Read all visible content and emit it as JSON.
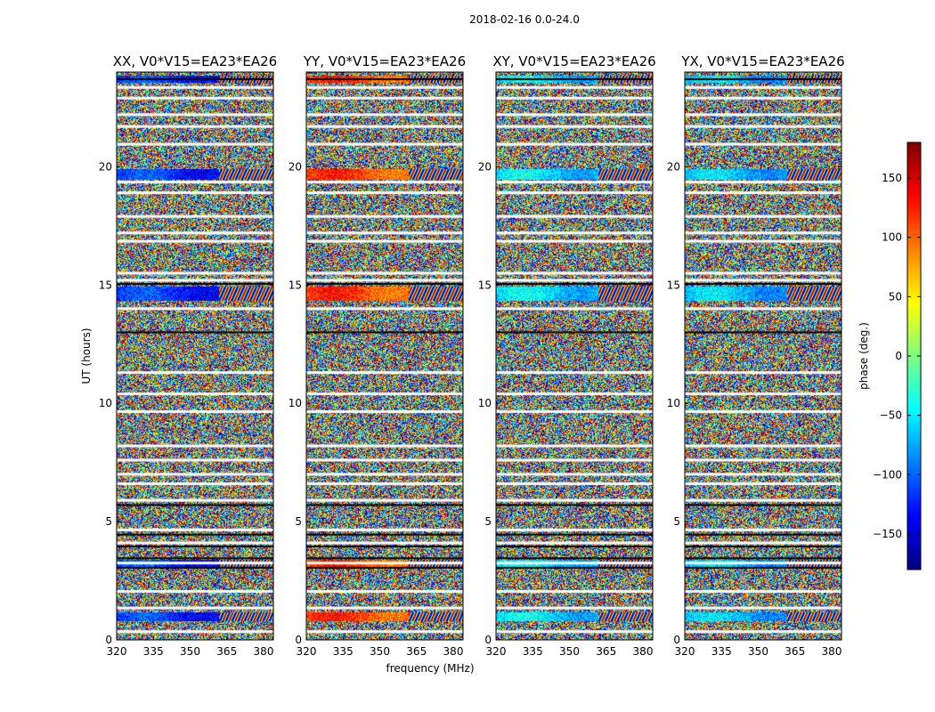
{
  "chart_data": {
    "type": "heatmap",
    "suptitle": "2018-02-16 0.0-24.0",
    "xlabel": "frequency (MHz)",
    "ylabel": "UT (hours)",
    "xlim": [
      320,
      384
    ],
    "ylim": [
      0,
      24
    ],
    "xticks": [
      {
        "value": 320,
        "label": "320"
      },
      {
        "value": 335,
        "label": "335"
      },
      {
        "value": 350,
        "label": "350"
      },
      {
        "value": 365,
        "label": "365"
      },
      {
        "value": 380,
        "label": "380"
      }
    ],
    "yticks": [
      {
        "value": 0,
        "label": "0"
      },
      {
        "value": 5,
        "label": "5"
      },
      {
        "value": 10,
        "label": "10"
      },
      {
        "value": 15,
        "label": "15"
      },
      {
        "value": 20,
        "label": "20"
      }
    ],
    "panels": [
      {
        "title": "XX, V0*V15=EA23*EA26",
        "bias": -120
      },
      {
        "title": "YY, V0*V15=EA23*EA26",
        "bias": 110
      },
      {
        "title": "XY, V0*V15=EA23*EA26",
        "bias": -60
      },
      {
        "title": "YX, V0*V15=EA23*EA26",
        "bias": -70
      }
    ],
    "colorbar": {
      "label": "phase (deg.)",
      "range": [
        -180,
        180
      ],
      "ticks": [
        {
          "value": 150,
          "label": "150"
        },
        {
          "value": 100,
          "label": "100"
        },
        {
          "value": 50,
          "label": "50"
        },
        {
          "value": 0,
          "label": "0"
        },
        {
          "value": -50,
          "label": "−50"
        },
        {
          "value": -100,
          "label": "−100"
        },
        {
          "value": -150,
          "label": "−150"
        }
      ],
      "colormap": [
        "#00007f",
        "#0000ff",
        "#007fff",
        "#00ffff",
        "#7fff7f",
        "#ffff00",
        "#ff7f00",
        "#ff0000",
        "#7f0000"
      ]
    },
    "gap_rows_ut": [
      23.35,
      22.9,
      22.2,
      21.7,
      20.95,
      19.35,
      18.9,
      17.9,
      17.2,
      16.85,
      15.5,
      15.2,
      14.0,
      11.3,
      10.4,
      9.65,
      8.2,
      7.6,
      7.0,
      6.6,
      5.9,
      4.65,
      4.1,
      3.25,
      2.05,
      1.35,
      0.35
    ],
    "flag_rows_ut": [
      23.7,
      15.05,
      13.0,
      5.7,
      4.45,
      3.95,
      3.45,
      3.05
    ],
    "coherent_bands_ut": [
      [
        23.55,
        23.85
      ],
      [
        19.45,
        19.9
      ],
      [
        14.35,
        14.95
      ],
      [
        3.1,
        3.4
      ],
      [
        0.8,
        1.2
      ]
    ]
  }
}
